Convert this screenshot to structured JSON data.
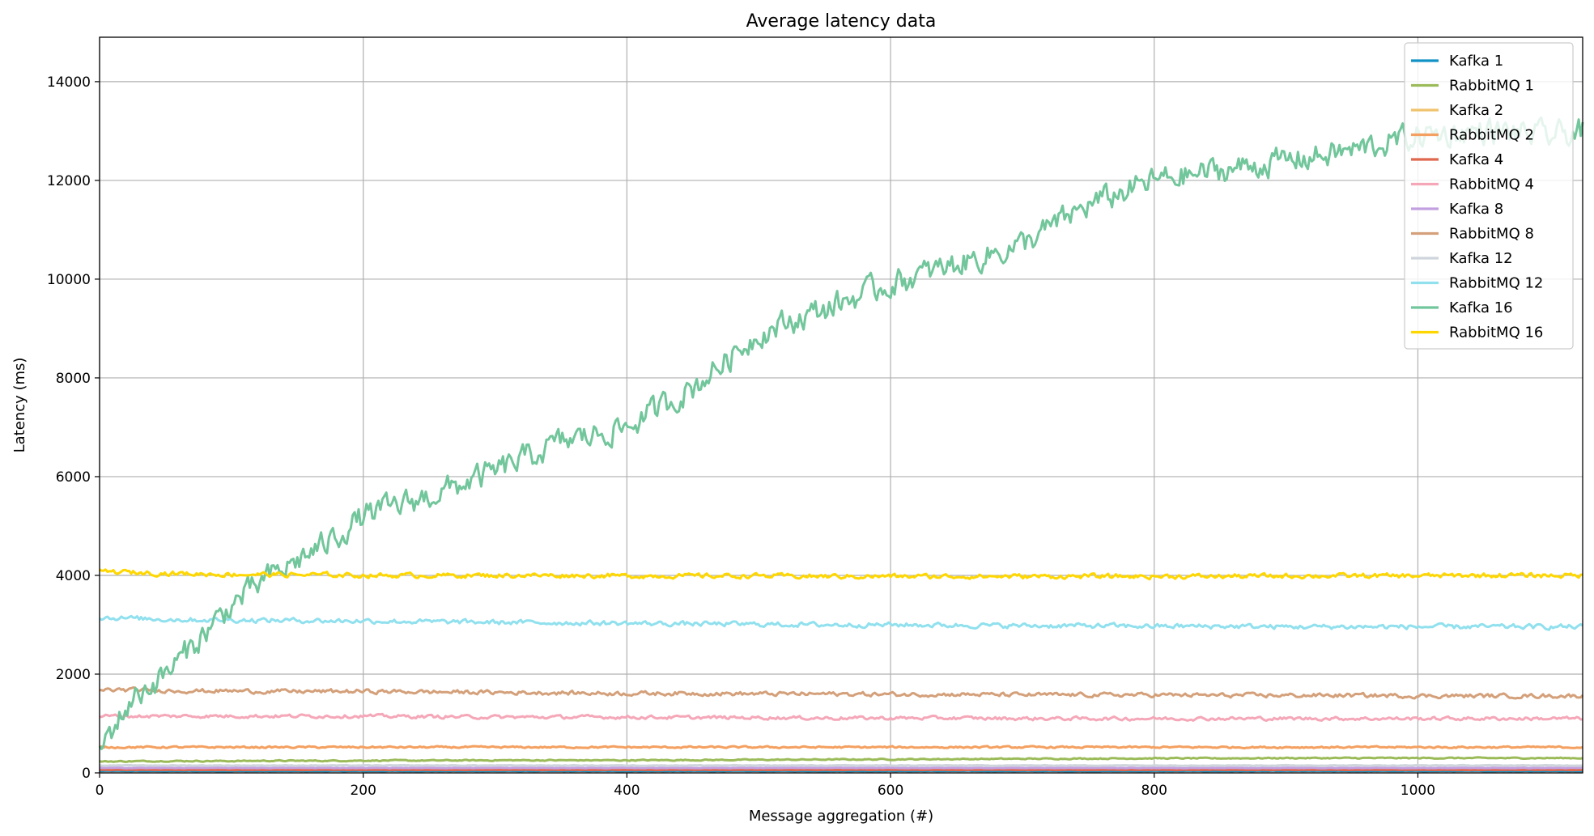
{
  "chart_data": {
    "type": "line",
    "title": "Average latency data",
    "xlabel": "Message aggregation (#)",
    "ylabel": "Latency (ms)",
    "xlim": [
      0,
      1125
    ],
    "ylim": [
      0,
      14900
    ],
    "xticks": [
      0,
      200,
      400,
      600,
      800,
      1000
    ],
    "yticks": [
      0,
      2000,
      4000,
      6000,
      8000,
      10000,
      12000,
      14000
    ],
    "x_tick_labels": [
      "0",
      "200",
      "400",
      "600",
      "800",
      "1000"
    ],
    "y_tick_labels": [
      "0",
      "2000",
      "4000",
      "6000",
      "8000",
      "10000",
      "12000",
      "14000"
    ],
    "grid": true,
    "legend_position": "top-right",
    "x_samples": [
      0,
      25,
      50,
      75,
      100,
      125,
      150,
      175,
      200,
      250,
      300,
      350,
      400,
      450,
      500,
      550,
      600,
      650,
      700,
      750,
      800,
      850,
      900,
      950,
      1000,
      1050,
      1100,
      1125
    ],
    "series": [
      {
        "name": "Kafka 1",
        "color": "#1192c5",
        "values": [
          40,
          40,
          40,
          40,
          40,
          40,
          40,
          40,
          40,
          40,
          40,
          40,
          40,
          40,
          40,
          40,
          40,
          40,
          40,
          40,
          40,
          40,
          40,
          40,
          40,
          40,
          40,
          40
        ],
        "noise": 5
      },
      {
        "name": "RabbitMQ 1",
        "color": "#9bbb59",
        "values": [
          230,
          235,
          240,
          240,
          240,
          245,
          245,
          245,
          250,
          250,
          255,
          255,
          255,
          260,
          265,
          270,
          275,
          280,
          285,
          290,
          295,
          295,
          300,
          300,
          300,
          300,
          300,
          300
        ],
        "noise": 18
      },
      {
        "name": "Kafka 2",
        "color": "#f0c36d",
        "values": [
          80,
          80,
          80,
          80,
          80,
          80,
          80,
          80,
          80,
          80,
          80,
          80,
          80,
          80,
          80,
          80,
          80,
          80,
          80,
          80,
          80,
          80,
          80,
          80,
          80,
          80,
          80,
          80
        ],
        "noise": 8
      },
      {
        "name": "RabbitMQ 2",
        "color": "#f4a060",
        "values": [
          520,
          520,
          520,
          520,
          520,
          520,
          520,
          520,
          520,
          520,
          520,
          520,
          520,
          520,
          520,
          520,
          520,
          520,
          520,
          520,
          520,
          520,
          520,
          520,
          520,
          520,
          520,
          520
        ],
        "noise": 28
      },
      {
        "name": "Kafka 4",
        "color": "#e0684f",
        "values": [
          60,
          60,
          60,
          60,
          60,
          60,
          60,
          60,
          60,
          60,
          60,
          60,
          60,
          60,
          60,
          60,
          60,
          60,
          60,
          60,
          60,
          60,
          60,
          60,
          60,
          60,
          60,
          60
        ],
        "noise": 6
      },
      {
        "name": "RabbitMQ 4",
        "color": "#f5a7b8",
        "values": [
          1150,
          1150,
          1150,
          1150,
          1150,
          1150,
          1150,
          1150,
          1150,
          1140,
          1130,
          1130,
          1130,
          1120,
          1120,
          1110,
          1110,
          1110,
          1100,
          1100,
          1100,
          1100,
          1100,
          1100,
          1100,
          1100,
          1100,
          1100
        ],
        "noise": 55
      },
      {
        "name": "Kafka 8",
        "color": "#c2a0e0",
        "values": [
          100,
          100,
          100,
          100,
          100,
          100,
          100,
          100,
          100,
          100,
          100,
          100,
          100,
          100,
          100,
          100,
          100,
          100,
          100,
          100,
          100,
          100,
          100,
          100,
          100,
          100,
          100,
          100
        ],
        "noise": 8
      },
      {
        "name": "RabbitMQ 8",
        "color": "#d4a07a",
        "values": [
          1680,
          1680,
          1670,
          1660,
          1660,
          1650,
          1650,
          1650,
          1650,
          1640,
          1630,
          1620,
          1610,
          1610,
          1600,
          1600,
          1590,
          1590,
          1580,
          1580,
          1580,
          1570,
          1570,
          1570,
          1560,
          1560,
          1560,
          1560
        ],
        "noise": 65
      },
      {
        "name": "Kafka 12",
        "color": "#cfd5dc",
        "values": [
          150,
          150,
          150,
          150,
          150,
          150,
          150,
          150,
          150,
          150,
          150,
          150,
          150,
          150,
          150,
          150,
          150,
          150,
          150,
          150,
          150,
          150,
          150,
          150,
          150,
          150,
          150,
          150
        ],
        "noise": 10
      },
      {
        "name": "RabbitMQ 12",
        "color": "#90e0ee",
        "values": [
          3150,
          3130,
          3110,
          3100,
          3100,
          3090,
          3090,
          3080,
          3080,
          3060,
          3050,
          3040,
          3030,
          3020,
          3010,
          3000,
          3000,
          2990,
          2980,
          2980,
          2970,
          2970,
          2960,
          2960,
          2960,
          2960,
          2960,
          2960
        ],
        "noise": 75
      },
      {
        "name": "Kafka 16",
        "color": "#72c69b",
        "values": [
          500,
          1500,
          2000,
          2700,
          3400,
          3900,
          4300,
          4700,
          5200,
          5600,
          6100,
          6700,
          7000,
          7800,
          8900,
          9400,
          9900,
          10300,
          10700,
          11500,
          12000,
          12200,
          12400,
          12600,
          12900,
          13000,
          12900,
          13000
        ],
        "noise": 420
      },
      {
        "name": "RabbitMQ 16",
        "color": "#ffd700",
        "values": [
          4080,
          4060,
          4040,
          4030,
          4020,
          4020,
          4010,
          4010,
          4000,
          4000,
          4000,
          4000,
          3990,
          3990,
          3990,
          3980,
          3980,
          3980,
          3980,
          3980,
          3980,
          3980,
          3990,
          3990,
          3990,
          4000,
          4000,
          4000
        ],
        "noise": 75
      }
    ]
  }
}
